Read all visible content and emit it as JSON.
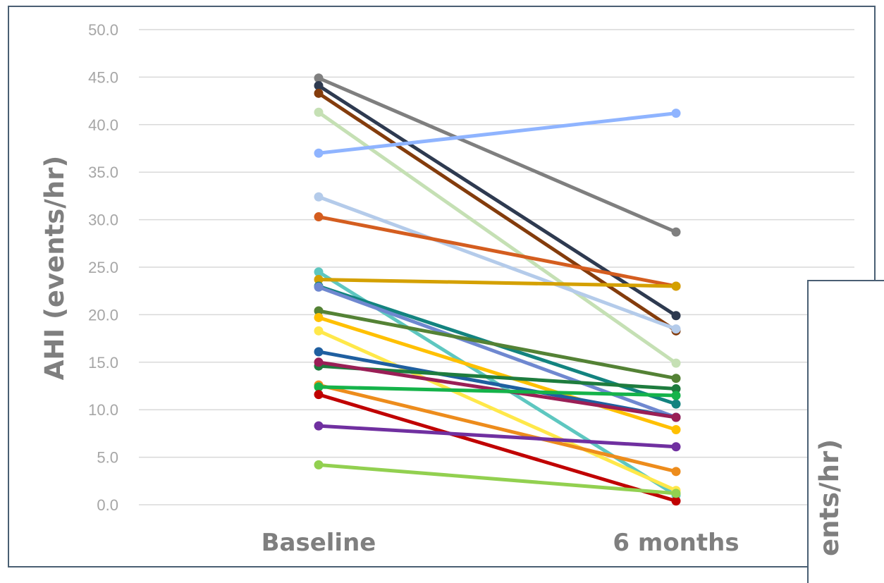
{
  "chart_data": {
    "type": "line",
    "ylabel": "AHI (events/hr)",
    "categories": [
      "Baseline",
      "6 months"
    ],
    "ylim": [
      0,
      50
    ],
    "yticks": [
      "0.0",
      "5.0",
      "10.0",
      "15.0",
      "20.0",
      "25.0",
      "30.0",
      "35.0",
      "40.0",
      "45.0",
      "50.0"
    ],
    "grid": true,
    "legend": "none",
    "series": [
      {
        "values": [
          44.9,
          28.7
        ],
        "color": "#7f7f7f"
      },
      {
        "values": [
          44.1,
          19.9
        ],
        "color": "#2e3a50"
      },
      {
        "values": [
          43.3,
          18.3
        ],
        "color": "#843c0c"
      },
      {
        "values": [
          41.3,
          14.9
        ],
        "color": "#c5e0b4"
      },
      {
        "values": [
          37.0,
          41.2
        ],
        "color": "#8fb4ff"
      },
      {
        "values": [
          32.4,
          18.5
        ],
        "color": "#b4cbea"
      },
      {
        "values": [
          30.3,
          23.0
        ],
        "color": "#d45d1f"
      },
      {
        "values": [
          24.5,
          1.0
        ],
        "color": "#5ec7c0"
      },
      {
        "values": [
          23.7,
          23.0
        ],
        "color": "#d4a000"
      },
      {
        "values": [
          23.0,
          10.6
        ],
        "color": "#13837f"
      },
      {
        "values": [
          22.9,
          9.2
        ],
        "color": "#6f88d0"
      },
      {
        "values": [
          20.4,
          13.3
        ],
        "color": "#548235"
      },
      {
        "values": [
          19.7,
          7.9
        ],
        "color": "#ffc000"
      },
      {
        "values": [
          18.3,
          1.5
        ],
        "color": "#ffe84a"
      },
      {
        "values": [
          16.1,
          9.2
        ],
        "color": "#1f5fa0"
      },
      {
        "values": [
          14.6,
          12.2
        ],
        "color": "#1e7c3e"
      },
      {
        "values": [
          15.0,
          9.2
        ],
        "color": "#9a1f56"
      },
      {
        "values": [
          12.6,
          3.5
        ],
        "color": "#ed8c1c"
      },
      {
        "values": [
          12.4,
          11.5
        ],
        "color": "#15b34a"
      },
      {
        "values": [
          11.6,
          0.4
        ],
        "color": "#c00000"
      },
      {
        "values": [
          8.3,
          6.1
        ],
        "color": "#7030a0"
      },
      {
        "values": [
          4.2,
          1.2
        ],
        "color": "#92d050"
      }
    ]
  },
  "second_panel": {
    "ylabel_fragment": "ents/hr)"
  }
}
